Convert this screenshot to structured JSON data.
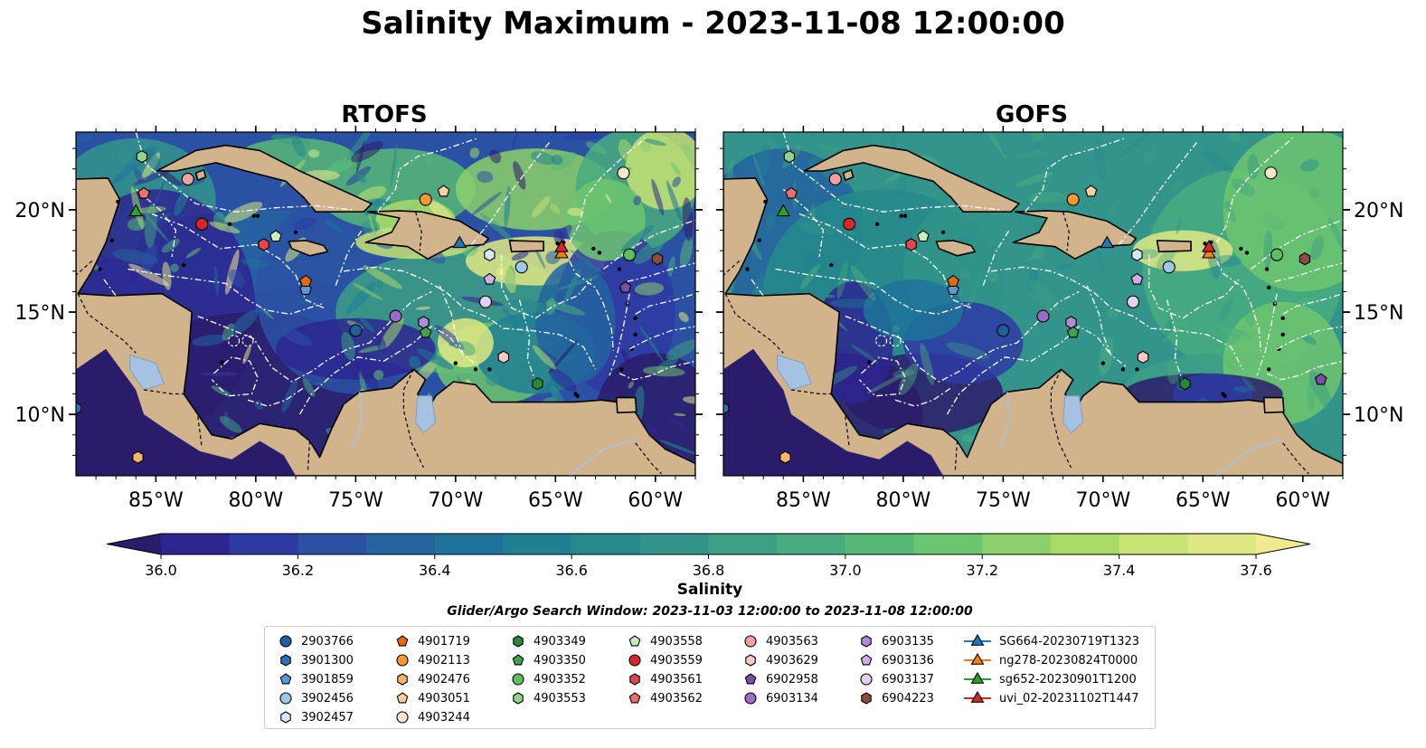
{
  "title": "Salinity Maximum - 2023-11-08 12:00:00",
  "panels": [
    {
      "title": "RTOFS"
    },
    {
      "title": "GOFS"
    }
  ],
  "axes": {
    "x_ticks": [
      "85°W",
      "80°W",
      "75°W",
      "70°W",
      "65°W",
      "60°W"
    ],
    "y_ticks": [
      "20°N",
      "15°N",
      "10°N"
    ]
  },
  "colorbar": {
    "label": "Salinity",
    "ticks": [
      "36.0",
      "36.2",
      "36.4",
      "36.6",
      "36.8",
      "37.0",
      "37.2",
      "37.4",
      "37.6"
    ],
    "colors": [
      "#2b1c6b",
      "#2d2691",
      "#2e3aa3",
      "#2b51a4",
      "#2563a0",
      "#1f739a",
      "#1f8093",
      "#26898b",
      "#32948a",
      "#3d9f84",
      "#48ac7e",
      "#56b977",
      "#6cc56f",
      "#8bd06a",
      "#a9da68",
      "#c6e273",
      "#dfe784",
      "#f3ea90"
    ]
  },
  "search_window": "Glider/Argo Search Window: 2023-11-03 12:00:00 to 2023-11-08 12:00:00",
  "legend": [
    {
      "label": "2903766",
      "shape": "circle",
      "color": "#1f5f9c"
    },
    {
      "label": "3901300",
      "shape": "hexagon",
      "color": "#2c6fb5"
    },
    {
      "label": "3901859",
      "shape": "pentagon",
      "color": "#5a9ad4"
    },
    {
      "label": "3902456",
      "shape": "circle",
      "color": "#9cc8ea"
    },
    {
      "label": "3902457",
      "shape": "hexagon",
      "color": "#d5e8f7"
    },
    {
      "label": "4901719",
      "shape": "pentagon",
      "color": "#e8680f"
    },
    {
      "label": "4902113",
      "shape": "circle",
      "color": "#f79734"
    },
    {
      "label": "4902476",
      "shape": "hexagon",
      "color": "#f9b46b"
    },
    {
      "label": "4903051",
      "shape": "pentagon",
      "color": "#fdd0a0"
    },
    {
      "label": "4903244",
      "shape": "circle",
      "color": "#fee6cc"
    },
    {
      "label": "4903349",
      "shape": "hexagon",
      "color": "#228b3a"
    },
    {
      "label": "4903350",
      "shape": "pentagon",
      "color": "#3fa34d"
    },
    {
      "label": "4903352",
      "shape": "circle",
      "color": "#5cbf60"
    },
    {
      "label": "4903553",
      "shape": "hexagon",
      "color": "#8fd48a"
    },
    {
      "label": "4903558",
      "shape": "pentagon",
      "color": "#c7edc0"
    },
    {
      "label": "4903559",
      "shape": "circle",
      "color": "#d62728"
    },
    {
      "label": "4903561",
      "shape": "hexagon",
      "color": "#e0464a"
    },
    {
      "label": "4903562",
      "shape": "pentagon",
      "color": "#ec6f70"
    },
    {
      "label": "4903563",
      "shape": "circle",
      "color": "#f4a0a0"
    },
    {
      "label": "4903629",
      "shape": "hexagon",
      "color": "#fac8c8"
    },
    {
      "label": "6902958",
      "shape": "pentagon",
      "color": "#7b4ea8"
    },
    {
      "label": "6903134",
      "shape": "circle",
      "color": "#9a6cc5"
    },
    {
      "label": "6903135",
      "shape": "hexagon",
      "color": "#b28bd6"
    },
    {
      "label": "6903136",
      "shape": "pentagon",
      "color": "#cdb0ea"
    },
    {
      "label": "6903137",
      "shape": "circle",
      "color": "#e3d0f5"
    },
    {
      "label": "6904223",
      "shape": "hexagon",
      "color": "#8c4e3a"
    },
    {
      "label": "SG664-20230719T1323",
      "shape": "triangle",
      "color": "#1f77b4"
    },
    {
      "label": "ng278-20230824T0000",
      "shape": "triangle",
      "color": "#ff7f0e"
    },
    {
      "label": "sg652-20230901T1200",
      "shape": "triangle",
      "color": "#2ca02c"
    },
    {
      "label": "uvi_02-20231102T1447",
      "shape": "triangle",
      "color": "#d62728"
    }
  ],
  "map_colors": {
    "land": "#d2b48c",
    "lake": "#a6c2e3",
    "coast": "#000000",
    "eez": "#ffffff"
  }
}
